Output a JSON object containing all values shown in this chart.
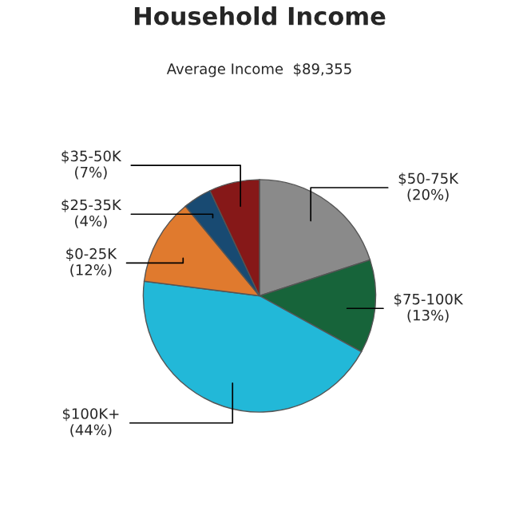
{
  "chart_data": {
    "type": "pie",
    "title": "Household Income",
    "subtitle": "Average Income  $89,355",
    "categories": [
      "$50-75K",
      "$75-100K",
      "$100K+",
      "$0-25K",
      "$25-35K",
      "$35-50K"
    ],
    "values": [
      20,
      13,
      44,
      12,
      4,
      7
    ],
    "value_labels": [
      "(20%)",
      "(13%)",
      "(44%)",
      "(12%)",
      "(4%)",
      "(7%)"
    ],
    "colors": [
      "#8a8a8a",
      "#17643a",
      "#22b8d8",
      "#e07a2e",
      "#184a72",
      "#861818"
    ]
  }
}
